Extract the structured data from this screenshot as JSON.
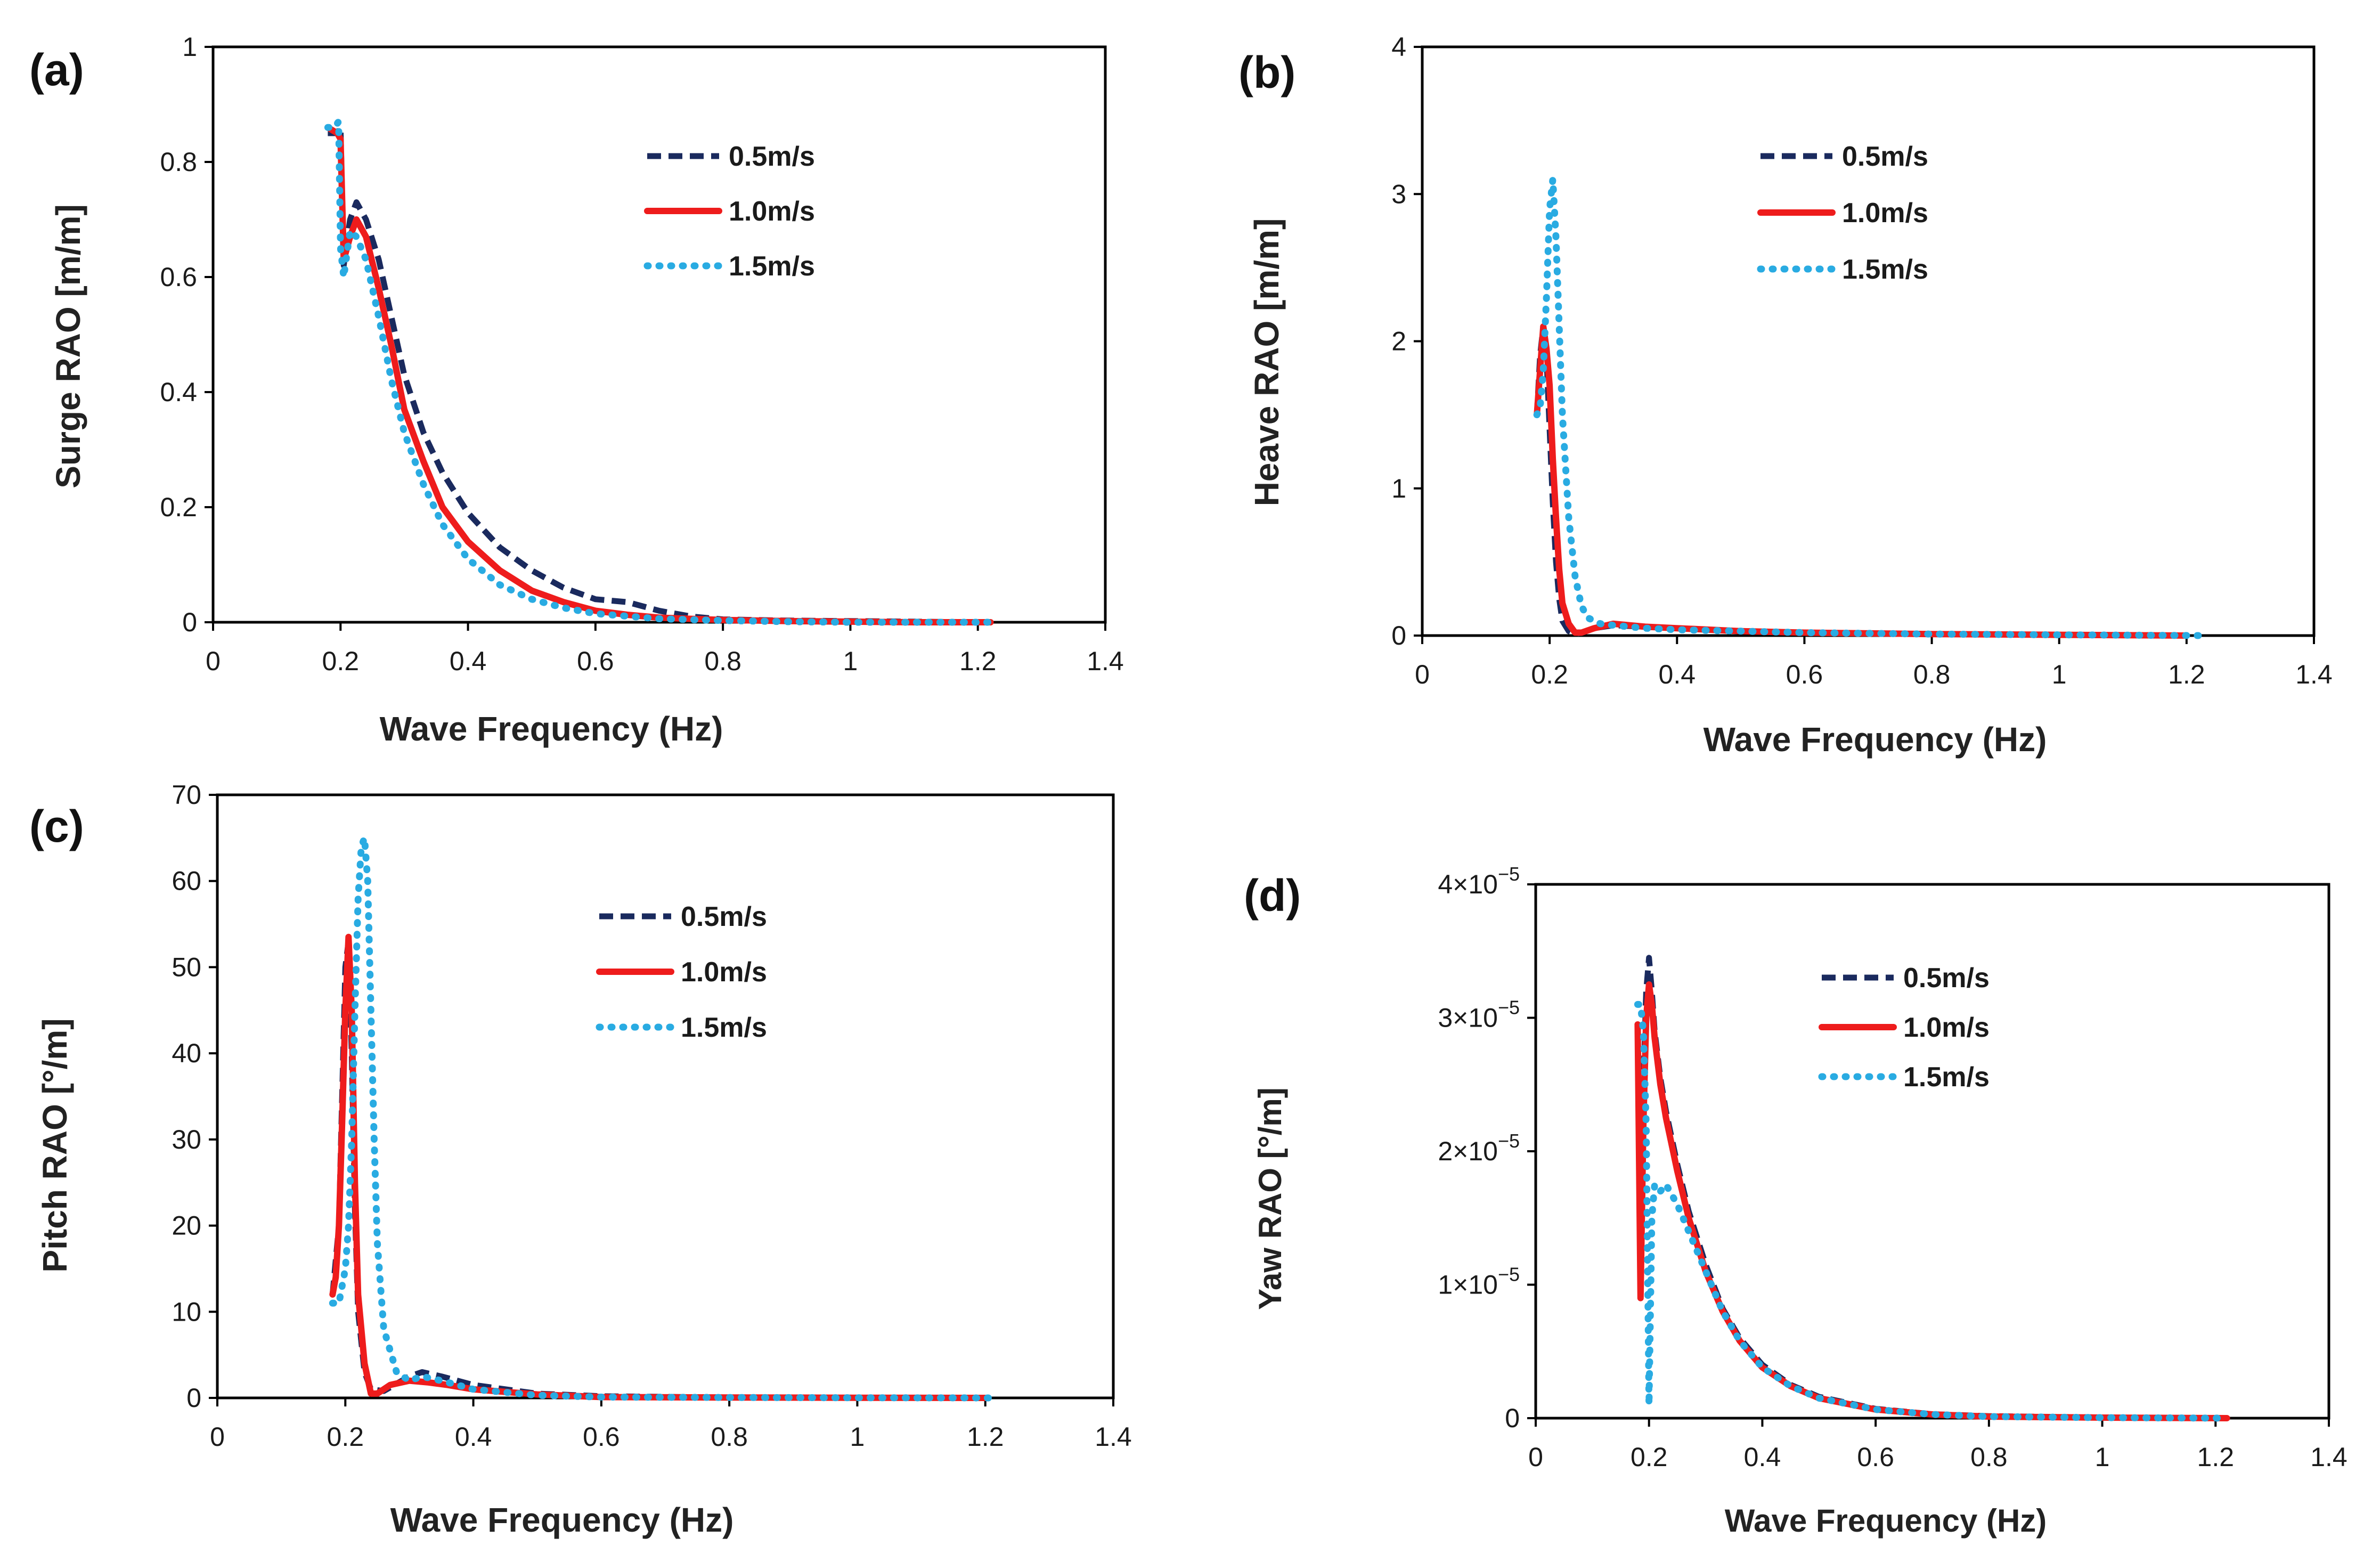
{
  "figure": {
    "colors": {
      "s05": "#1a2a5e",
      "s10": "#ee1c1c",
      "s15": "#29abe2"
    },
    "legend_labels": [
      "0.5m/s",
      "1.0m/s",
      "1.5m/s"
    ]
  },
  "chart_data": [
    {
      "type": "line",
      "panel": "(a)",
      "xlabel": "Wave Frequency (Hz)",
      "ylabel": "Surge RAO [m/m]",
      "xlim": [
        0,
        1.4
      ],
      "ylim": [
        0,
        1
      ],
      "xticks": [
        "0",
        "0.2",
        "0.4",
        "0.6",
        "0.8",
        "1",
        "1.2",
        "1.4"
      ],
      "yticks": [
        "0",
        "0.2",
        "0.4",
        "0.6",
        "0.8",
        "1"
      ],
      "series": [
        {
          "name": "0.5m/s",
          "x": [
            0.18,
            0.195,
            0.2,
            0.205,
            0.215,
            0.225,
            0.24,
            0.26,
            0.28,
            0.3,
            0.33,
            0.36,
            0.4,
            0.45,
            0.5,
            0.55,
            0.6,
            0.65,
            0.7,
            0.75,
            0.8,
            0.9,
            1.0,
            1.1,
            1.22
          ],
          "y": [
            0.85,
            0.85,
            0.86,
            0.62,
            0.7,
            0.73,
            0.7,
            0.63,
            0.53,
            0.43,
            0.33,
            0.26,
            0.19,
            0.13,
            0.09,
            0.06,
            0.04,
            0.035,
            0.02,
            0.01,
            0.005,
            0.003,
            0.002,
            0.001,
            0.0
          ]
        },
        {
          "name": "1.0m/s",
          "x": [
            0.18,
            0.195,
            0.2,
            0.205,
            0.215,
            0.225,
            0.24,
            0.26,
            0.28,
            0.3,
            0.33,
            0.36,
            0.4,
            0.45,
            0.5,
            0.55,
            0.6,
            0.65,
            0.7,
            0.8,
            0.9,
            1.0,
            1.1,
            1.22
          ],
          "y": [
            0.86,
            0.85,
            0.84,
            0.63,
            0.67,
            0.7,
            0.67,
            0.58,
            0.48,
            0.37,
            0.28,
            0.2,
            0.14,
            0.09,
            0.055,
            0.035,
            0.02,
            0.013,
            0.008,
            0.004,
            0.002,
            0.001,
            0.0,
            0.0
          ]
        },
        {
          "name": "1.5m/s",
          "x": [
            0.18,
            0.19,
            0.197,
            0.2,
            0.205,
            0.215,
            0.225,
            0.24,
            0.26,
            0.28,
            0.3,
            0.33,
            0.36,
            0.4,
            0.45,
            0.5,
            0.55,
            0.6,
            0.7,
            0.8,
            0.9,
            1.0,
            1.1,
            1.22
          ],
          "y": [
            0.86,
            0.86,
            0.87,
            0.65,
            0.6,
            0.68,
            0.67,
            0.63,
            0.53,
            0.42,
            0.33,
            0.24,
            0.17,
            0.11,
            0.065,
            0.04,
            0.025,
            0.015,
            0.006,
            0.003,
            0.001,
            0.0,
            0.0,
            0.0
          ]
        }
      ]
    },
    {
      "type": "line",
      "panel": "(b)",
      "xlabel": "Wave Frequency (Hz)",
      "ylabel": "Heave RAO [m/m]",
      "xlim": [
        0,
        1.4
      ],
      "ylim": [
        0,
        4
      ],
      "xticks": [
        "0",
        "0.2",
        "0.4",
        "0.6",
        "0.8",
        "1",
        "1.2",
        "1.4"
      ],
      "yticks": [
        "0",
        "1",
        "2",
        "3",
        "4"
      ],
      "series": [
        {
          "name": "0.5m/s",
          "x": [
            0.18,
            0.185,
            0.19,
            0.195,
            0.2,
            0.205,
            0.21,
            0.215,
            0.22,
            0.23,
            0.24,
            0.25,
            0.27,
            0.3,
            0.35,
            0.4,
            0.5,
            0.6,
            0.8,
            1.0,
            1.2
          ],
          "y": [
            1.5,
            1.9,
            2.1,
            1.9,
            1.4,
            0.9,
            0.5,
            0.25,
            0.1,
            0.03,
            0.01,
            0.02,
            0.05,
            0.07,
            0.06,
            0.05,
            0.03,
            0.02,
            0.01,
            0.005,
            0.0
          ]
        },
        {
          "name": "1.0m/s",
          "x": [
            0.18,
            0.185,
            0.19,
            0.195,
            0.2,
            0.205,
            0.21,
            0.215,
            0.22,
            0.23,
            0.24,
            0.25,
            0.27,
            0.3,
            0.35,
            0.4,
            0.5,
            0.6,
            0.8,
            1.0,
            1.2
          ],
          "y": [
            1.5,
            1.8,
            2.1,
            1.95,
            1.7,
            1.2,
            0.8,
            0.45,
            0.22,
            0.08,
            0.02,
            0.02,
            0.05,
            0.08,
            0.06,
            0.05,
            0.03,
            0.02,
            0.01,
            0.005,
            0.0
          ]
        },
        {
          "name": "1.5m/s",
          "x": [
            0.18,
            0.185,
            0.19,
            0.195,
            0.2,
            0.205,
            0.21,
            0.215,
            0.22,
            0.23,
            0.24,
            0.25,
            0.26,
            0.28,
            0.3,
            0.35,
            0.4,
            0.5,
            0.6,
            0.8,
            1.0,
            1.22
          ],
          "y": [
            1.5,
            1.55,
            1.8,
            2.3,
            2.9,
            3.1,
            2.7,
            2.1,
            1.5,
            0.8,
            0.4,
            0.2,
            0.12,
            0.08,
            0.07,
            0.05,
            0.04,
            0.03,
            0.02,
            0.01,
            0.005,
            0.0
          ]
        }
      ]
    },
    {
      "type": "line",
      "panel": "(c)",
      "xlabel": "Wave Frequency (Hz)",
      "ylabel": "Pitch RAO [°/m]",
      "xlim": [
        0,
        1.4
      ],
      "ylim": [
        0,
        70
      ],
      "xticks": [
        "0",
        "0.2",
        "0.4",
        "0.6",
        "0.8",
        "1",
        "1.2",
        "1.4"
      ],
      "yticks": [
        "0",
        "10",
        "20",
        "30",
        "40",
        "50",
        "60",
        "70"
      ],
      "series": [
        {
          "name": "0.5m/s",
          "x": [
            0.18,
            0.19,
            0.195,
            0.2,
            0.205,
            0.21,
            0.215,
            0.22,
            0.23,
            0.24,
            0.26,
            0.3,
            0.32,
            0.35,
            0.4,
            0.5,
            0.6,
            0.8,
            1.0,
            1.2
          ],
          "y": [
            12,
            20,
            35,
            50,
            53,
            40,
            22,
            10,
            3,
            1,
            0.8,
            2.5,
            3,
            2.5,
            1.5,
            0.5,
            0.2,
            0.05,
            0.02,
            0.0
          ]
        },
        {
          "name": "1.0m/s",
          "x": [
            0.18,
            0.185,
            0.19,
            0.195,
            0.2,
            0.205,
            0.21,
            0.215,
            0.22,
            0.23,
            0.24,
            0.25,
            0.27,
            0.3,
            0.33,
            0.36,
            0.4,
            0.5,
            0.6,
            0.8,
            1.0,
            1.2
          ],
          "y": [
            12,
            14,
            20,
            32,
            45,
            53.5,
            45,
            25,
            12,
            4,
            0.5,
            0.5,
            1.5,
            2,
            1.8,
            1.5,
            1,
            0.4,
            0.1,
            0.05,
            0.02,
            0.0
          ]
        },
        {
          "name": "1.5m/s",
          "x": [
            0.18,
            0.19,
            0.2,
            0.205,
            0.21,
            0.215,
            0.22,
            0.225,
            0.23,
            0.235,
            0.24,
            0.245,
            0.25,
            0.26,
            0.28,
            0.3,
            0.32,
            0.35,
            0.4,
            0.5,
            0.6,
            0.8,
            1.0,
            1.22
          ],
          "y": [
            11,
            11,
            15,
            20,
            30,
            45,
            58,
            64,
            65,
            60,
            45,
            30,
            18,
            8,
            3,
            2,
            2.5,
            2,
            1,
            0.3,
            0.1,
            0.05,
            0.02,
            0.0
          ]
        }
      ]
    },
    {
      "type": "line",
      "panel": "(d)",
      "xlabel": "Wave Frequency (Hz)",
      "ylabel": "Yaw RAO [°/m]",
      "xlim": [
        0,
        1.4
      ],
      "ylim": [
        0,
        4e-05
      ],
      "xticks": [
        "0",
        "0.2",
        "0.4",
        "0.6",
        "0.8",
        "1",
        "1.2",
        "1.4"
      ],
      "yticks": [
        {
          "value": 0,
          "base": "0",
          "exp": ""
        },
        {
          "value": 1e-05,
          "base": "1×10",
          "exp": "−5"
        },
        {
          "value": 2e-05,
          "base": "2×10",
          "exp": "−5"
        },
        {
          "value": 3e-05,
          "base": "3×10",
          "exp": "−5"
        },
        {
          "value": 4e-05,
          "base": "4×10",
          "exp": "−5"
        }
      ],
      "series": [
        {
          "name": "0.5m/s",
          "x": [
            0.18,
            0.185,
            0.19,
            0.195,
            0.2,
            0.205,
            0.21,
            0.22,
            0.23,
            0.25,
            0.27,
            0.3,
            0.33,
            0.36,
            0.4,
            0.45,
            0.5,
            0.6,
            0.7,
            0.8,
            1.0,
            1.2
          ],
          "y": [
            2.9e-05,
            1e-05,
            2.5e-05,
            3.2e-05,
            3.45e-05,
            3.2e-05,
            2.9e-05,
            2.55e-05,
            2.3e-05,
            1.9e-05,
            1.55e-05,
            1.15e-05,
            8.2e-06,
            6e-06,
            4e-06,
            2.5e-06,
            1.6e-06,
            7e-07,
            3e-07,
            1.5e-07,
            5e-08,
            0.0
          ]
        },
        {
          "name": "1.0m/s",
          "x": [
            0.18,
            0.185,
            0.19,
            0.195,
            0.2,
            0.205,
            0.21,
            0.22,
            0.23,
            0.25,
            0.27,
            0.3,
            0.33,
            0.36,
            0.4,
            0.45,
            0.5,
            0.6,
            0.7,
            0.8,
            1.0,
            1.22
          ],
          "y": [
            2.95e-05,
            9e-06,
            2.2e-05,
            3e-05,
            3.25e-05,
            3.1e-05,
            2.85e-05,
            2.5e-05,
            2.25e-05,
            1.85e-05,
            1.5e-05,
            1.1e-05,
            8e-06,
            5.8e-06,
            3.8e-06,
            2.4e-06,
            1.5e-06,
            6.5e-07,
            2.8e-07,
            1.2e-07,
            4e-08,
            0.0
          ]
        },
        {
          "name": "1.5m/s",
          "x": [
            0.18,
            0.185,
            0.19,
            0.195,
            0.2,
            0.205,
            0.21,
            0.22,
            0.23,
            0.25,
            0.27,
            0.3,
            0.33,
            0.36,
            0.4,
            0.45,
            0.5,
            0.6,
            0.7,
            0.8,
            1.0,
            1.22
          ],
          "y": [
            3.1e-05,
            3.1e-05,
            2.9e-05,
            2.2e-05,
            1e-06,
            1.5e-05,
            1.75e-05,
            1.7e-05,
            1.75e-05,
            1.6e-05,
            1.4e-05,
            1.1e-05,
            8e-06,
            5.8e-06,
            3.8e-06,
            2.4e-06,
            1.5e-06,
            6.5e-07,
            2.8e-07,
            1.2e-07,
            4e-08,
            0.0
          ]
        }
      ]
    }
  ]
}
